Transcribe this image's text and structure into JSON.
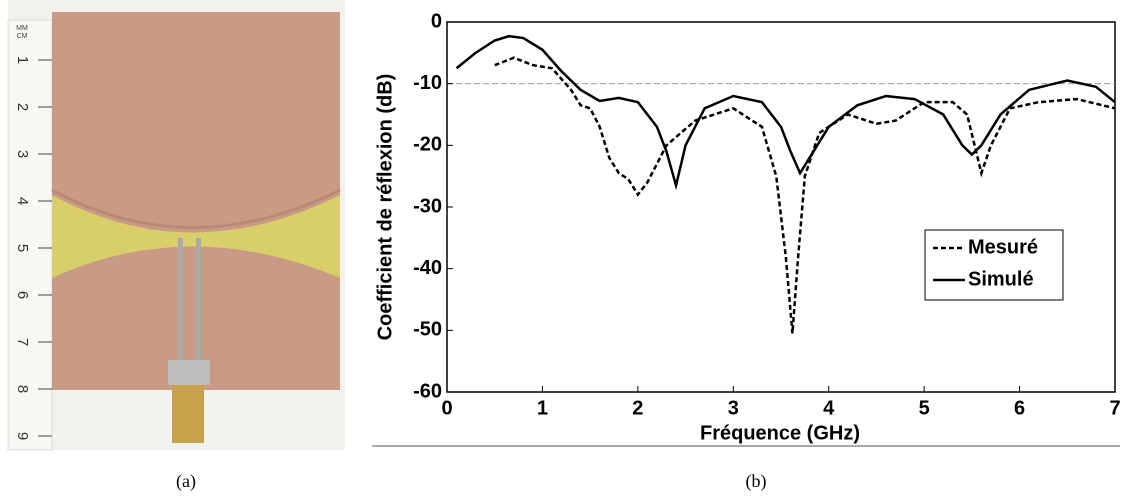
{
  "photo": {
    "ruler_unit": [
      "MM",
      "CM"
    ],
    "ruler_labels": [
      "1",
      "2",
      "3",
      "4",
      "5",
      "6",
      "7",
      "8",
      "9"
    ]
  },
  "captions": [
    "(a)",
    "(b)"
  ],
  "chart_data": {
    "type": "line",
    "xlabel": "Fréquence (GHz)",
    "ylabel": "Coefficient de réflexion (dB)",
    "xlim": [
      0,
      7
    ],
    "xticks": [
      0,
      1,
      2,
      3,
      4,
      5,
      6,
      7
    ],
    "ylim": [
      -60,
      0
    ],
    "yticks": [
      0,
      -10,
      -20,
      -30,
      -40,
      -50,
      -60
    ],
    "hline": -10,
    "hline_color": "#999999",
    "legend": "right",
    "series": [
      {
        "name": "Mesuré",
        "color": "#000000",
        "line_style": "dashed",
        "x": [
          0.5,
          0.7,
          0.9,
          1.1,
          1.3,
          1.4,
          1.5,
          1.6,
          1.7,
          1.8,
          1.9,
          2.0,
          2.1,
          2.3,
          2.6,
          3.0,
          3.3,
          3.45,
          3.55,
          3.62,
          3.68,
          3.75,
          3.9,
          4.2,
          4.5,
          4.7,
          5.0,
          5.3,
          5.45,
          5.6,
          5.7,
          5.9,
          6.2,
          6.6,
          7.0
        ],
        "values": [
          -7,
          -5.8,
          -7,
          -7.5,
          -11,
          -13.5,
          -14,
          -17,
          -22,
          -24.5,
          -25.5,
          -28,
          -26,
          -20,
          -16,
          -14,
          -17,
          -25,
          -38,
          -50.5,
          -38,
          -25,
          -18,
          -15,
          -16.5,
          -16,
          -13,
          -13,
          -15,
          -24.5,
          -20,
          -14,
          -13,
          -12.5,
          -14
        ]
      },
      {
        "name": "Simulé",
        "color": "#000000",
        "line_style": "solid",
        "x": [
          0.1,
          0.3,
          0.5,
          0.65,
          0.8,
          1.0,
          1.2,
          1.4,
          1.6,
          1.8,
          2.0,
          2.2,
          2.3,
          2.4,
          2.5,
          2.7,
          3.0,
          3.3,
          3.5,
          3.6,
          3.7,
          3.8,
          4.0,
          4.3,
          4.6,
          4.9,
          5.2,
          5.4,
          5.5,
          5.6,
          5.8,
          6.1,
          6.5,
          6.8,
          7.0
        ],
        "values": [
          -7.5,
          -5,
          -3,
          -2.3,
          -2.6,
          -4.5,
          -8,
          -11,
          -12.8,
          -12.3,
          -13,
          -17,
          -21,
          -26.5,
          -20,
          -14,
          -12,
          -13,
          -17,
          -21,
          -24.5,
          -22,
          -17,
          -13.5,
          -12,
          -12.5,
          -15,
          -20,
          -21.5,
          -20,
          -15,
          -11,
          -9.5,
          -10.5,
          -13
        ]
      }
    ]
  }
}
